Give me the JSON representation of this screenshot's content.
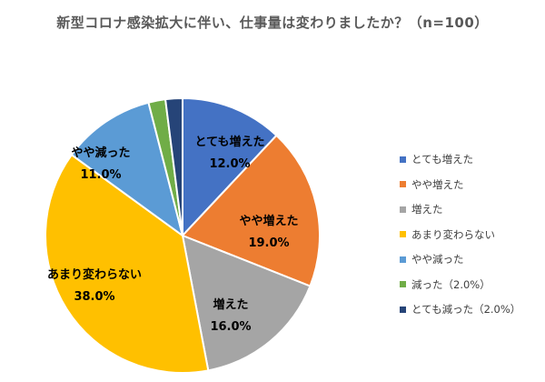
{
  "chart_data": {
    "type": "pie",
    "title": "新型コロナ感染拡大に伴い、仕事量は変わりましたか？（n=100）",
    "slices": [
      {
        "name": "とても増えた",
        "legend": "とても増えた",
        "value": 12.0,
        "value_label": "12.0%",
        "color": "#4472C4",
        "label_shown": true
      },
      {
        "name": "やや増えた",
        "legend": "やや増えた",
        "value": 19.0,
        "value_label": "19.0%",
        "color": "#ED7D31",
        "label_shown": true
      },
      {
        "name": "増えた",
        "legend": "増えた",
        "value": 16.0,
        "value_label": "16.0%",
        "color": "#A5A5A5",
        "label_shown": true
      },
      {
        "name": "あまり変わらない",
        "legend": "あまり変わらない",
        "value": 38.0,
        "value_label": "38.0%",
        "color": "#FFC000",
        "label_shown": true
      },
      {
        "name": "やや減った",
        "legend": "やや減った",
        "value": 11.0,
        "value_label": "11.0%",
        "color": "#5B9BD5",
        "label_shown": true
      },
      {
        "name": "減った",
        "legend": "減った（2.0%）",
        "value": 2.0,
        "value_label": "2.0%",
        "color": "#70AD47",
        "label_shown": false
      },
      {
        "name": "とても減った",
        "legend": "とても減った（2.0%）",
        "value": 2.0,
        "value_label": "2.0%",
        "color": "#264478",
        "label_shown": false
      }
    ],
    "legend_position": "right"
  }
}
